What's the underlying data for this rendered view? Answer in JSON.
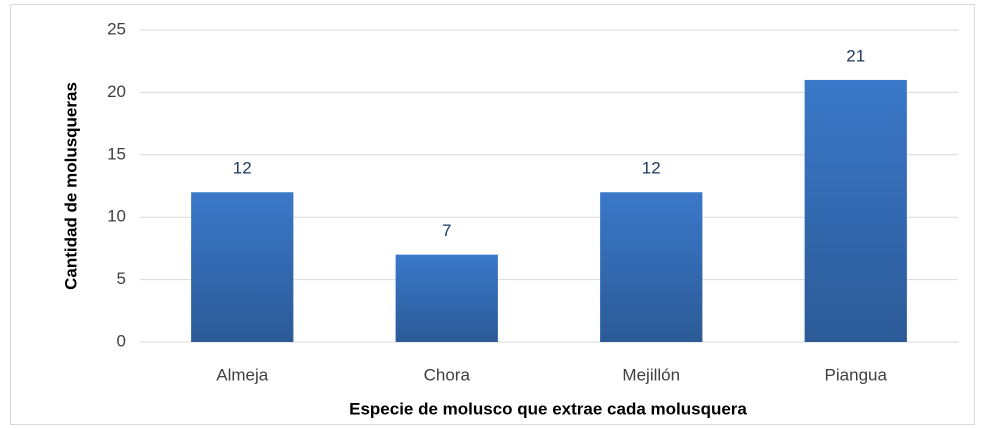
{
  "chart_data": {
    "type": "bar",
    "x_label": "Especie de molusco que extrae cada molusquera",
    "y_label": "Cantidad de molusqueras",
    "categories": [
      "Almeja",
      "Chora",
      "Mejillón",
      "Piangua"
    ],
    "values": [
      12,
      7,
      12,
      21
    ],
    "color": "#3a78c9",
    "ylim": [
      0,
      25
    ],
    "yticks": [
      0,
      5,
      10,
      15,
      20,
      25
    ],
    "grid": true
  }
}
